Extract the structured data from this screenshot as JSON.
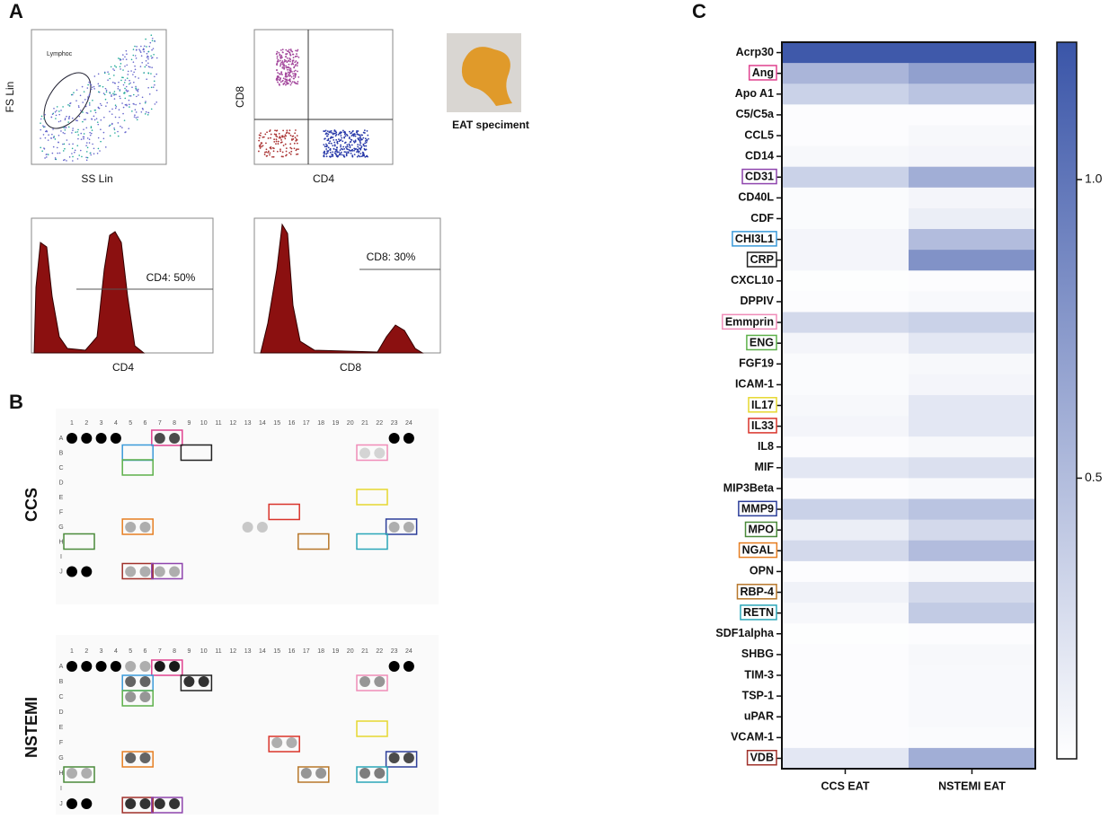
{
  "panel_labels": [
    "A",
    "B",
    "C"
  ],
  "panel_a": {
    "scatter1": {
      "y_label": "FS Lin",
      "x_label": "SS Lin",
      "gate_label": "Lymphoc"
    },
    "scatter2": {
      "y_label": "CD8",
      "x_label": "CD4"
    },
    "photo_caption": "EAT speciment",
    "hist1": {
      "x_label": "CD4",
      "annotation": "CD4: 50%"
    },
    "hist2": {
      "x_label": "CD8",
      "annotation": "CD8: 30%"
    }
  },
  "panel_b": {
    "blot_columns": [
      "1",
      "2",
      "3",
      "4",
      "5",
      "6",
      "7",
      "8",
      "9",
      "10",
      "11",
      "12",
      "13",
      "14",
      "15",
      "16",
      "17",
      "18",
      "19",
      "20",
      "21",
      "22",
      "23",
      "24"
    ],
    "blot_rows": [
      "A",
      "B",
      "C",
      "D",
      "E",
      "F",
      "G",
      "H",
      "I",
      "J"
    ],
    "blots": [
      "CCS",
      "NSTEMI"
    ]
  },
  "chart_data": {
    "type": "heatmap",
    "categories": [
      "Acrp30",
      "Ang",
      "Apo A1",
      "C5/C5a",
      "CCL5",
      "CD14",
      "CD31",
      "CD40L",
      "CDF",
      "CHI3L1",
      "CRP",
      "CXCL10",
      "DPPIV",
      "Emmprin",
      "ENG",
      "FGF19",
      "ICAM-1",
      "IL17",
      "IL33",
      "IL8",
      "MIF",
      "MIP3Beta",
      "MMP9",
      "MPO",
      "NGAL",
      "OPN",
      "RBP-4",
      "RETN",
      "SDF1alpha",
      "SHBG",
      "TIM-3",
      "TSP-1",
      "uPAR",
      "VCAM-1",
      "VDB"
    ],
    "label_box_colors": [
      null,
      "#e0428f",
      null,
      null,
      null,
      null,
      "#8e44ad",
      null,
      null,
      "#3a9ad9",
      "#222222",
      null,
      null,
      "#f08cb8",
      "#5db04a",
      null,
      null,
      "#e6d830",
      "#d9342b",
      null,
      null,
      null,
      "#2c3e99",
      "#4a8a3a",
      "#e67e22",
      null,
      "#b7772a",
      "#2aa6b8",
      null,
      null,
      null,
      null,
      null,
      null,
      "#a0302a"
    ],
    "series": [
      {
        "name": "CCS EAT",
        "values": [
          1.2,
          0.55,
          0.35,
          0.05,
          0.05,
          0.08,
          0.35,
          0.06,
          0.06,
          0.1,
          0.1,
          0.04,
          0.05,
          0.3,
          0.1,
          0.06,
          0.06,
          0.08,
          0.1,
          0.05,
          0.2,
          0.05,
          0.35,
          0.15,
          0.3,
          0.05,
          0.12,
          0.08,
          0.04,
          0.05,
          0.05,
          0.05,
          0.05,
          0.05,
          0.2
        ]
      },
      {
        "name": "NSTEMI EAT",
        "values": [
          1.2,
          0.7,
          0.45,
          0.05,
          0.08,
          0.1,
          0.6,
          0.1,
          0.15,
          0.5,
          0.8,
          0.05,
          0.07,
          0.35,
          0.2,
          0.08,
          0.1,
          0.2,
          0.2,
          0.08,
          0.25,
          0.07,
          0.45,
          0.3,
          0.5,
          0.08,
          0.3,
          0.4,
          0.05,
          0.08,
          0.07,
          0.07,
          0.07,
          0.06,
          0.6
        ]
      }
    ],
    "color_low": "#ffffff",
    "color_high": "#3a55a8",
    "clim": [
      0.03,
      1.23
    ],
    "cticks": [
      0.5,
      {
        "value": 1.0,
        "label": "1.0"
      }
    ]
  }
}
